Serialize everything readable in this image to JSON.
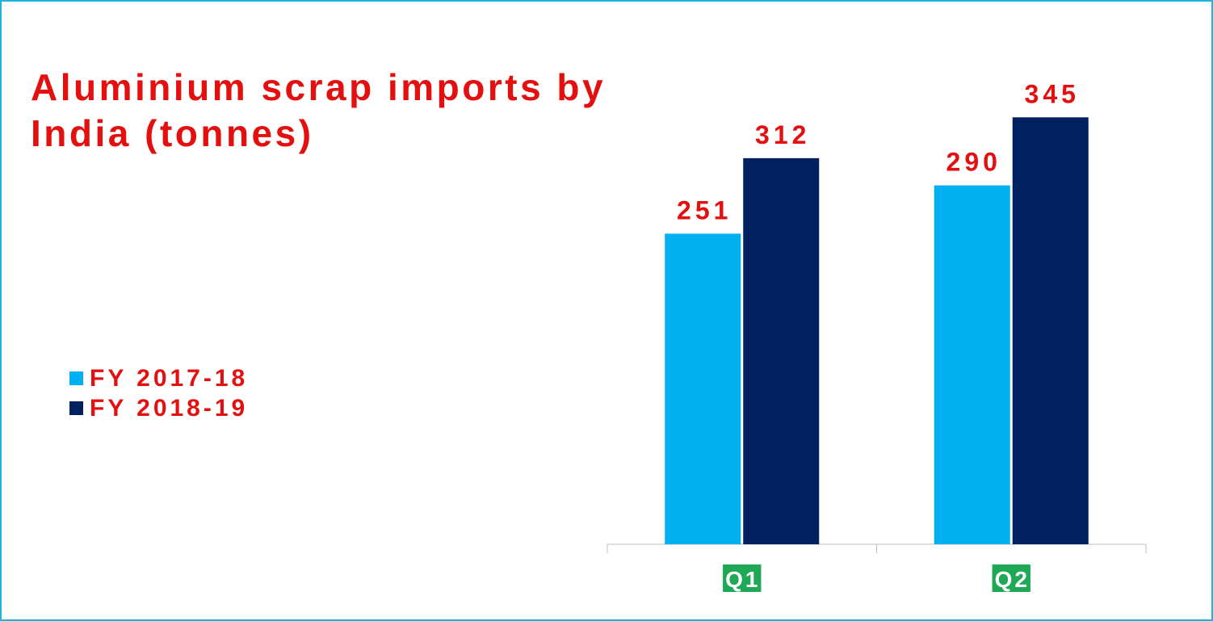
{
  "chart_data": {
    "type": "bar",
    "title": "Aluminium scrap imports by India (tonnes)",
    "categories": [
      "Q1",
      "Q2"
    ],
    "series": [
      {
        "name": "FY 2017-18",
        "color": "#00b0f0",
        "values": [
          251,
          290
        ]
      },
      {
        "name": "FY 2018-19",
        "color": "#002060",
        "values": [
          312,
          345
        ]
      }
    ],
    "ylim": [
      0,
      400
    ],
    "legend": "left",
    "label_color": "#e41010",
    "category_box_color": "#1fa957"
  }
}
